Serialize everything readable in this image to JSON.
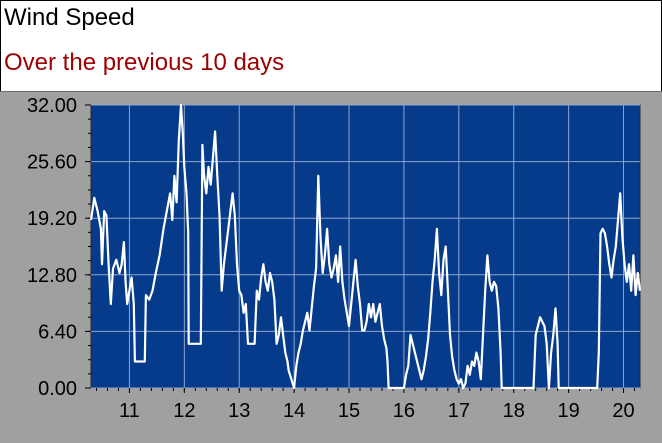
{
  "header": {
    "title": "Wind Speed",
    "subtitle": "Over the previous 10 days"
  },
  "colors": {
    "title": "#000000",
    "subtitle": "#9c0000",
    "plot_background": "#053b8a",
    "grid": "#8fa6cf",
    "line": "#ffffff",
    "panel": "#a0a0a0"
  },
  "chart_data": {
    "type": "line",
    "title": "Wind Speed",
    "subtitle": "Over the previous 10 days",
    "xlabel": "",
    "ylabel": "",
    "xlim": [
      10.3,
      20.3
    ],
    "ylim": [
      0,
      32
    ],
    "grid": true,
    "x_ticks": [
      11,
      12,
      13,
      14,
      15,
      16,
      17,
      18,
      19,
      20
    ],
    "x_tick_labels": [
      "11",
      "12",
      "13",
      "14",
      "15",
      "16",
      "17",
      "18",
      "19",
      "20"
    ],
    "y_ticks": [
      0,
      6.4,
      12.8,
      19.2,
      25.6,
      32
    ],
    "y_tick_labels": [
      "0.00",
      "6.40",
      "12.80",
      "19.20",
      "25.60",
      "32.00"
    ],
    "series": [
      {
        "values": [
          [
            10.3,
            19.0
          ],
          [
            10.36,
            21.5
          ],
          [
            10.42,
            20.0
          ],
          [
            10.48,
            18.0
          ],
          [
            10.5,
            14.0
          ],
          [
            10.54,
            20.0
          ],
          [
            10.58,
            19.5
          ],
          [
            10.62,
            14.0
          ],
          [
            10.66,
            9.5
          ],
          [
            10.7,
            13.5
          ],
          [
            10.76,
            14.5
          ],
          [
            10.82,
            13.0
          ],
          [
            10.86,
            14.0
          ],
          [
            10.9,
            16.5
          ],
          [
            10.93,
            12.0
          ],
          [
            10.96,
            9.5
          ],
          [
            11.0,
            11.0
          ],
          [
            11.04,
            12.5
          ],
          [
            11.08,
            9.5
          ],
          [
            11.1,
            3.0
          ],
          [
            11.28,
            3.0
          ],
          [
            11.3,
            10.5
          ],
          [
            11.36,
            10.0
          ],
          [
            11.42,
            11.0
          ],
          [
            11.48,
            13.0
          ],
          [
            11.55,
            15.0
          ],
          [
            11.62,
            18.0
          ],
          [
            11.68,
            20.0
          ],
          [
            11.74,
            22.0
          ],
          [
            11.78,
            19.0
          ],
          [
            11.82,
            24.0
          ],
          [
            11.86,
            21.0
          ],
          [
            11.9,
            28.0
          ],
          [
            11.94,
            32.0
          ],
          [
            11.97,
            29.0
          ],
          [
            12.0,
            25.0
          ],
          [
            12.04,
            22.0
          ],
          [
            12.07,
            17.5
          ],
          [
            12.08,
            5.0
          ],
          [
            12.3,
            5.0
          ],
          [
            12.33,
            27.5
          ],
          [
            12.36,
            24.0
          ],
          [
            12.4,
            22.0
          ],
          [
            12.44,
            25.0
          ],
          [
            12.48,
            23.0
          ],
          [
            12.52,
            26.0
          ],
          [
            12.56,
            29.0
          ],
          [
            12.6,
            24.0
          ],
          [
            12.64,
            19.5
          ],
          [
            12.68,
            11.0
          ],
          [
            12.72,
            14.0
          ],
          [
            12.76,
            16.0
          ],
          [
            12.8,
            18.0
          ],
          [
            12.84,
            20.0
          ],
          [
            12.88,
            22.0
          ],
          [
            12.92,
            19.5
          ],
          [
            12.96,
            14.0
          ],
          [
            13.0,
            11.0
          ],
          [
            13.04,
            10.5
          ],
          [
            13.08,
            8.5
          ],
          [
            13.12,
            9.5
          ],
          [
            13.16,
            5.0
          ],
          [
            13.28,
            5.0
          ],
          [
            13.32,
            11.0
          ],
          [
            13.36,
            10.0
          ],
          [
            13.4,
            12.5
          ],
          [
            13.44,
            14.0
          ],
          [
            13.48,
            12.0
          ],
          [
            13.52,
            11.0
          ],
          [
            13.56,
            13.0
          ],
          [
            13.6,
            12.0
          ],
          [
            13.64,
            10.0
          ],
          [
            13.68,
            5.0
          ],
          [
            13.72,
            6.0
          ],
          [
            13.76,
            8.0
          ],
          [
            13.8,
            6.0
          ],
          [
            13.84,
            4.0
          ],
          [
            13.88,
            3.0
          ],
          [
            13.9,
            2.0
          ],
          [
            13.95,
            1.0
          ],
          [
            14.0,
            0.0
          ],
          [
            14.04,
            2.5
          ],
          [
            14.08,
            4.0
          ],
          [
            14.12,
            5.0
          ],
          [
            14.16,
            6.5
          ],
          [
            14.2,
            7.5
          ],
          [
            14.24,
            8.5
          ],
          [
            14.28,
            6.5
          ],
          [
            14.32,
            9.0
          ],
          [
            14.36,
            11.5
          ],
          [
            14.4,
            13.5
          ],
          [
            14.44,
            24.0
          ],
          [
            14.48,
            17.0
          ],
          [
            14.52,
            13.0
          ],
          [
            14.56,
            15.0
          ],
          [
            14.6,
            18.0
          ],
          [
            14.64,
            14.0
          ],
          [
            14.68,
            12.5
          ],
          [
            14.72,
            13.5
          ],
          [
            14.76,
            15.0
          ],
          [
            14.8,
            12.0
          ],
          [
            14.84,
            16.0
          ],
          [
            14.88,
            12.0
          ],
          [
            14.92,
            10.0
          ],
          [
            14.96,
            8.5
          ],
          [
            15.0,
            7.0
          ],
          [
            15.04,
            9.5
          ],
          [
            15.08,
            12.0
          ],
          [
            15.12,
            14.5
          ],
          [
            15.16,
            11.5
          ],
          [
            15.2,
            9.5
          ],
          [
            15.24,
            6.5
          ],
          [
            15.28,
            6.5
          ],
          [
            15.32,
            7.5
          ],
          [
            15.36,
            9.5
          ],
          [
            15.4,
            8.0
          ],
          [
            15.44,
            9.5
          ],
          [
            15.48,
            7.5
          ],
          [
            15.52,
            8.5
          ],
          [
            15.56,
            9.5
          ],
          [
            15.6,
            7.0
          ],
          [
            15.64,
            5.5
          ],
          [
            15.68,
            4.5
          ],
          [
            15.7,
            3.0
          ],
          [
            15.72,
            0.0
          ],
          [
            16.0,
            0.0
          ],
          [
            16.04,
            1.5
          ],
          [
            16.08,
            2.5
          ],
          [
            16.12,
            6.0
          ],
          [
            16.16,
            5.0
          ],
          [
            16.2,
            4.0
          ],
          [
            16.24,
            3.0
          ],
          [
            16.28,
            2.0
          ],
          [
            16.32,
            1.0
          ],
          [
            16.36,
            2.0
          ],
          [
            16.4,
            3.5
          ],
          [
            16.44,
            5.5
          ],
          [
            16.48,
            8.5
          ],
          [
            16.52,
            12.0
          ],
          [
            16.56,
            14.5
          ],
          [
            16.6,
            18.0
          ],
          [
            16.64,
            13.0
          ],
          [
            16.68,
            10.5
          ],
          [
            16.72,
            14.5
          ],
          [
            16.76,
            16.0
          ],
          [
            16.8,
            11.0
          ],
          [
            16.84,
            6.0
          ],
          [
            16.88,
            3.5
          ],
          [
            16.92,
            2.0
          ],
          [
            16.96,
            1.0
          ],
          [
            17.0,
            0.5
          ],
          [
            17.04,
            1.0
          ],
          [
            17.08,
            0.0
          ],
          [
            17.12,
            0.5
          ],
          [
            17.16,
            2.5
          ],
          [
            17.2,
            1.5
          ],
          [
            17.24,
            3.0
          ],
          [
            17.28,
            2.5
          ],
          [
            17.32,
            4.0
          ],
          [
            17.36,
            3.0
          ],
          [
            17.4,
            1.0
          ],
          [
            17.44,
            6.0
          ],
          [
            17.48,
            11.0
          ],
          [
            17.52,
            15.0
          ],
          [
            17.56,
            12.0
          ],
          [
            17.6,
            11.0
          ],
          [
            17.64,
            12.0
          ],
          [
            17.68,
            11.5
          ],
          [
            17.72,
            9.0
          ],
          [
            17.76,
            4.0
          ],
          [
            17.78,
            0.0
          ],
          [
            18.36,
            0.0
          ],
          [
            18.4,
            6.0
          ],
          [
            18.44,
            7.0
          ],
          [
            18.48,
            8.0
          ],
          [
            18.52,
            7.5
          ],
          [
            18.56,
            7.0
          ],
          [
            18.6,
            5.0
          ],
          [
            18.64,
            0.0
          ],
          [
            18.68,
            4.0
          ],
          [
            18.72,
            6.0
          ],
          [
            18.76,
            9.0
          ],
          [
            18.8,
            5.0
          ],
          [
            18.82,
            0.0
          ],
          [
            19.52,
            0.0
          ],
          [
            19.55,
            4.0
          ],
          [
            19.58,
            17.5
          ],
          [
            19.62,
            18.0
          ],
          [
            19.66,
            17.5
          ],
          [
            19.7,
            16.0
          ],
          [
            19.74,
            14.0
          ],
          [
            19.78,
            12.5
          ],
          [
            19.82,
            14.5
          ],
          [
            19.86,
            16.0
          ],
          [
            19.9,
            19.0
          ],
          [
            19.94,
            22.0
          ],
          [
            19.98,
            17.0
          ],
          [
            20.02,
            14.0
          ],
          [
            20.06,
            12.0
          ],
          [
            20.1,
            14.0
          ],
          [
            20.14,
            11.0
          ],
          [
            20.18,
            15.0
          ],
          [
            20.22,
            10.5
          ],
          [
            20.26,
            13.0
          ],
          [
            20.3,
            11.0
          ]
        ]
      }
    ]
  }
}
